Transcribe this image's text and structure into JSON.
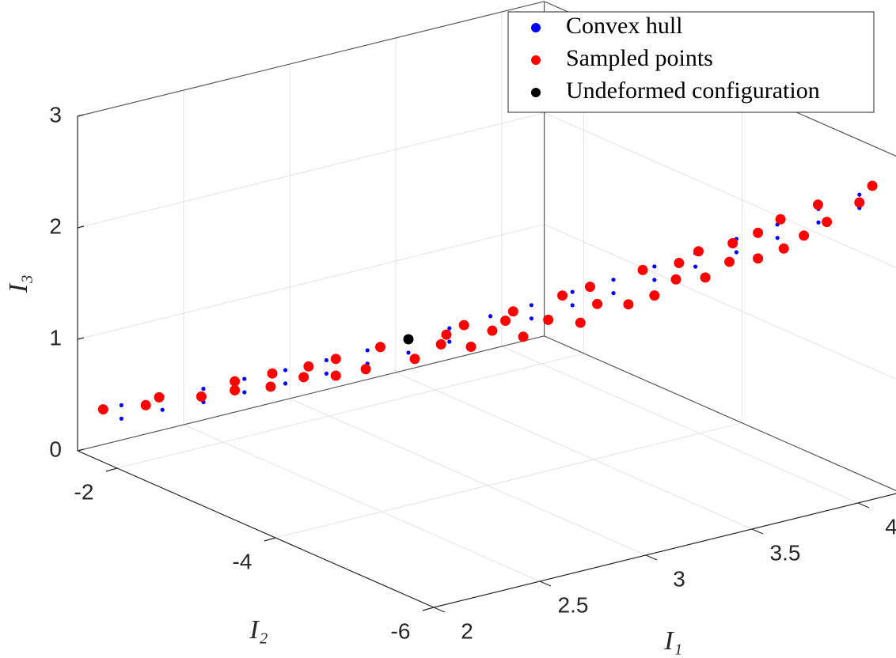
{
  "chart_data": {
    "type": "scatter3d",
    "xlabel": "I₁",
    "ylabel": "I₂",
    "zlabel": "I₃",
    "xlim": [
      2,
      4.2
    ],
    "xticks": [
      2,
      2.5,
      3,
      3.5,
      4
    ],
    "ylim": [
      -6,
      -1.5
    ],
    "yticks": [
      -6,
      -4,
      -2
    ],
    "zlim": [
      0,
      3
    ],
    "zticks": [
      0,
      1,
      2,
      3
    ],
    "grid": true,
    "legend": "northeast",
    "series": [
      {
        "name": "Convex hull",
        "color": "#0000ff",
        "x": [
          2.3,
          2.4,
          2.5,
          2.6,
          2.7,
          2.8,
          2.9,
          3,
          3.1,
          3.2,
          3.3,
          3.4,
          3.5,
          3.6,
          3.7,
          3.8,
          3.9,
          4,
          4.1,
          2.3,
          2.4,
          2.5,
          2.6,
          2.7,
          2.8,
          2.9,
          3,
          3.1,
          3.2,
          3.3,
          3.4,
          3.5,
          3.6,
          3.7,
          3.8,
          3.9,
          4,
          4.1
        ],
        "y": [
          -1.25,
          -1.5,
          -1.75,
          -2,
          -2.25,
          -2.5,
          -2.75,
          -3,
          -3.25,
          -3.5,
          -3.75,
          -4,
          -4.25,
          -4.5,
          -4.75,
          -5,
          -5.25,
          -5.5,
          -5.75,
          -1.25,
          -1.5,
          -1.75,
          -2,
          -2.25,
          -2.5,
          -2.75,
          -3,
          -3.25,
          -3.5,
          -3.75,
          -4,
          -4.25,
          -4.5,
          -4.75,
          -5,
          -5.25,
          -5.5,
          -5.75
        ],
        "z": [
          0.19,
          0.3,
          0.4,
          0.52,
          0.63,
          0.75,
          0.87,
          1,
          1.13,
          1.27,
          1.4,
          1.55,
          1.69,
          1.84,
          1.99,
          2.15,
          2.31,
          2.48,
          2.64,
          0.07,
          0.18,
          0.28,
          0.4,
          0.51,
          0.63,
          0.75,
          0.88,
          1.01,
          1.15,
          1.28,
          1.43,
          1.57,
          1.72,
          1.87,
          2.03,
          2.19,
          2.36,
          2.52
        ]
      },
      {
        "name": "Sampled points",
        "color": "#ff0000",
        "x": [
          2.255,
          2.359,
          2.392,
          2.494,
          2.577,
          2.577,
          2.668,
          2.664,
          2.745,
          2.757,
          2.822,
          2.822,
          2.896,
          2.931,
          3.015,
          3.079,
          3.093,
          3.153,
          3.135,
          3.205,
          3.237,
          3.255,
          3.28,
          3.342,
          3.375,
          3.419,
          3.442,
          3.461,
          3.537,
          3.571,
          3.6,
          3.653,
          3.66,
          3.724,
          3.707,
          3.782,
          3.79,
          3.853,
          3.853,
          3.907,
          3.915,
          3.965,
          3.998,
          4.021,
          4.1,
          4.131
        ],
        "y": [
          -1.14,
          -1.4,
          -1.48,
          -1.74,
          -1.94,
          -1.94,
          -2.17,
          -2.16,
          -2.36,
          -2.39,
          -2.56,
          -2.56,
          -2.74,
          -2.83,
          -3.04,
          -3.2,
          -3.23,
          -3.38,
          -3.34,
          -3.51,
          -3.59,
          -3.64,
          -3.7,
          -3.85,
          -3.94,
          -4.05,
          -4.11,
          -4.15,
          -4.34,
          -4.43,
          -4.5,
          -4.63,
          -4.65,
          -4.81,
          -4.77,
          -4.96,
          -4.98,
          -5.13,
          -5.13,
          -5.27,
          -5.29,
          -5.41,
          -5.5,
          -5.55,
          -5.75,
          -5.83
        ],
        "z": [
          0.14,
          0.21,
          0.29,
          0.33,
          0.49,
          0.41,
          0.59,
          0.47,
          0.58,
          0.68,
          0.62,
          0.77,
          0.7,
          0.91,
          0.83,
          0.98,
          1.07,
          0.98,
          1.17,
          1.14,
          1.24,
          1.33,
          1.11,
          1.28,
          1.51,
          1.28,
          1.61,
          1.46,
          1.48,
          1.8,
          1.58,
          1.74,
          1.89,
          1.78,
          2.01,
          1.94,
          2.11,
          1.99,
          2.22,
          2.36,
          2.1,
          2.23,
          2.52,
          2.37,
          2.57,
          2.73
        ]
      },
      {
        "name": "Undeformed configuration",
        "color": "#000000",
        "x": [
          3
        ],
        "y": [
          -3
        ],
        "z": [
          1
        ]
      }
    ]
  }
}
